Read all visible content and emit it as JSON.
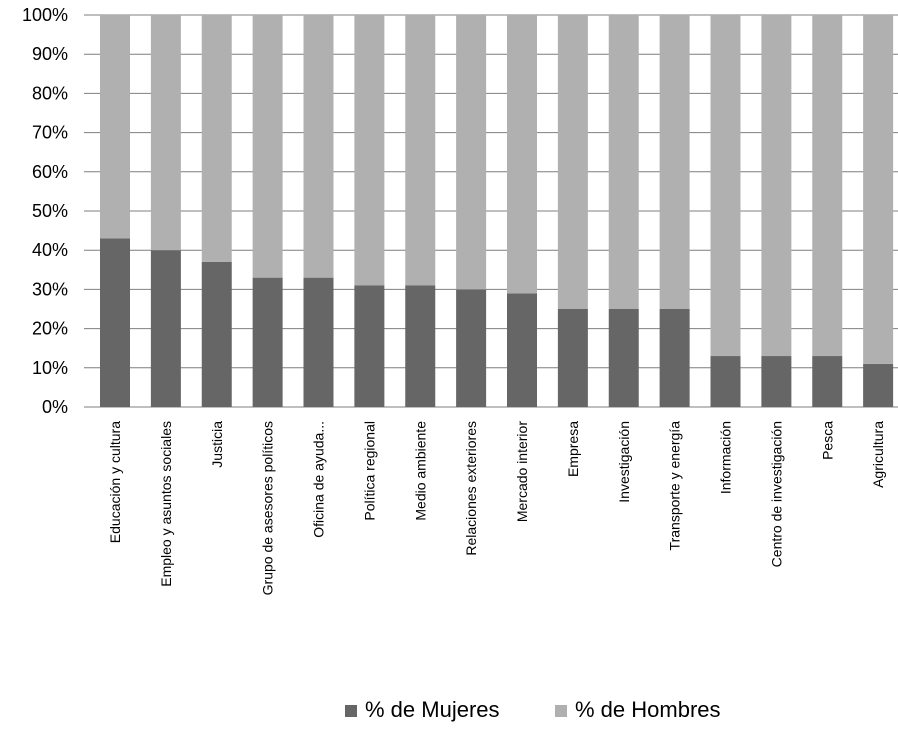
{
  "chart_data": {
    "type": "bar",
    "stacked": true,
    "normalized": true,
    "categories": [
      "Educación y cultura",
      "Empleo y asuntos sociales",
      "Justicia",
      "Grupo de asesores políticos",
      "Oficina de ayuda...",
      "Política regional",
      "Medio ambiente",
      "Relaciones exteriores",
      "Mercado interior",
      "Empresa",
      "Investigación",
      "Transporte y energía",
      "Información",
      "Centro de investigación",
      "Pesca",
      "Agricultura"
    ],
    "series": [
      {
        "name": "% de Mujeres",
        "color": "#666666",
        "values": [
          43,
          40,
          37,
          33,
          33,
          31,
          31,
          30,
          29,
          25,
          25,
          25,
          13,
          13,
          13,
          11
        ]
      },
      {
        "name": "% de Hombres",
        "color": "#b0b0b0",
        "values": [
          57,
          60,
          63,
          67,
          67,
          69,
          69,
          70,
          71,
          75,
          75,
          75,
          87,
          87,
          87,
          89
        ]
      }
    ],
    "y_ticks": [
      "0%",
      "10%",
      "20%",
      "30%",
      "40%",
      "50%",
      "60%",
      "70%",
      "80%",
      "90%",
      "100%"
    ],
    "ylim": [
      0,
      100
    ],
    "grid": true,
    "legend_position": "bottom"
  }
}
